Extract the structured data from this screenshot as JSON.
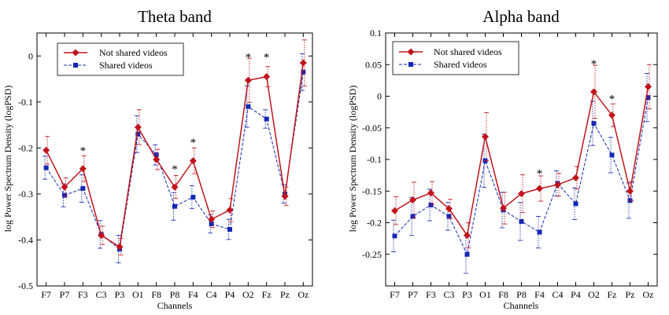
{
  "chart_data": [
    {
      "type": "line",
      "title": "Theta band",
      "xlabel": "Channels",
      "ylabel": "log Power Spectrum Density (logPSD)",
      "ylim": [
        -0.5,
        0.05
      ],
      "yticks": [
        -0.5,
        -0.4,
        -0.3,
        -0.2,
        -0.1,
        0
      ],
      "ytick_labels": [
        "-0.5",
        "-0.4",
        "-0.3",
        "-0.2",
        "-0.1",
        "0"
      ],
      "categories": [
        "F7",
        "P7",
        "F3",
        "C3",
        "P3",
        "O1",
        "F8",
        "P8",
        "F4",
        "C4",
        "P4",
        "O2",
        "Fz",
        "Pz",
        "Oz"
      ],
      "legend_position": "top-left",
      "series": [
        {
          "name": "Not shared videos",
          "color": "#c0141c",
          "marker": "diamond",
          "line_style": "solid",
          "values": [
            -0.205,
            -0.285,
            -0.245,
            -0.39,
            -0.415,
            -0.155,
            -0.225,
            -0.285,
            -0.228,
            -0.355,
            -0.335,
            -0.053,
            -0.045,
            -0.305,
            -0.015
          ],
          "errors": [
            0.03,
            0.02,
            0.028,
            0.02,
            0.018,
            0.038,
            0.022,
            0.025,
            0.028,
            0.018,
            0.025,
            0.048,
            0.022,
            0.02,
            0.05
          ]
        },
        {
          "name": "Shared videos",
          "color": "#1428b4",
          "marker": "square",
          "line_style": "dashed",
          "values": [
            -0.243,
            -0.303,
            -0.288,
            -0.388,
            -0.42,
            -0.17,
            -0.215,
            -0.327,
            -0.307,
            -0.365,
            -0.377,
            -0.11,
            -0.137,
            -0.3,
            -0.035
          ],
          "errors": [
            0.025,
            0.025,
            0.03,
            0.03,
            0.03,
            0.04,
            0.022,
            0.03,
            0.025,
            0.02,
            0.022,
            0.045,
            0.02,
            0.02,
            0.04
          ]
        }
      ],
      "significance_marks": [
        {
          "category": "F3",
          "label": "*",
          "y": -0.2
        },
        {
          "category": "P8",
          "label": "*",
          "y": -0.24
        },
        {
          "category": "F4",
          "label": "*",
          "y": -0.182
        },
        {
          "category": "O2",
          "label": "*",
          "y": 0.003
        },
        {
          "category": "Fz",
          "label": "*",
          "y": 0.003
        }
      ]
    },
    {
      "type": "line",
      "title": "Alpha band",
      "xlabel": "Channels",
      "ylabel": "log Power Spectrum Density (logPSD)",
      "ylim": [
        -0.3,
        0.1
      ],
      "yticks": [
        -0.25,
        -0.2,
        -0.15,
        -0.1,
        -0.05,
        0,
        0.05,
        0.1
      ],
      "ytick_labels": [
        "-0.25",
        "-0.2",
        "-0.15",
        "-0.1",
        "-0.05",
        "0",
        "0.05",
        "0.1"
      ],
      "categories": [
        "F7",
        "P7",
        "F3",
        "C3",
        "P3",
        "O1",
        "F8",
        "P8",
        "F4",
        "C4",
        "P4",
        "O2",
        "Fz",
        "Pz",
        "Oz"
      ],
      "legend_position": "top-left",
      "series": [
        {
          "name": "Not shared videos",
          "color": "#c0141c",
          "marker": "diamond",
          "line_style": "solid",
          "values": [
            -0.181,
            -0.164,
            -0.153,
            -0.178,
            -0.22,
            -0.064,
            -0.177,
            -0.154,
            -0.146,
            -0.14,
            -0.129,
            0.007,
            -0.03,
            -0.15,
            0.015
          ],
          "errors": [
            0.022,
            0.028,
            0.018,
            0.015,
            0.02,
            0.038,
            0.025,
            0.03,
            0.02,
            0.018,
            0.018,
            0.042,
            0.018,
            0.015,
            0.035
          ]
        },
        {
          "name": "Shared videos",
          "color": "#1428b4",
          "marker": "square",
          "line_style": "dashed",
          "values": [
            -0.221,
            -0.19,
            -0.172,
            -0.19,
            -0.25,
            -0.102,
            -0.18,
            -0.198,
            -0.215,
            -0.138,
            -0.17,
            -0.043,
            -0.093,
            -0.165,
            -0.002
          ],
          "errors": [
            0.025,
            0.03,
            0.025,
            0.022,
            0.03,
            0.042,
            0.028,
            0.03,
            0.025,
            0.02,
            0.025,
            0.035,
            0.028,
            0.028,
            0.038
          ]
        }
      ],
      "significance_marks": [
        {
          "category": "F4",
          "label": "*",
          "y": -0.118
        },
        {
          "category": "O2",
          "label": "*",
          "y": 0.055
        },
        {
          "category": "Fz",
          "label": "*",
          "y": 0.0
        }
      ]
    }
  ]
}
